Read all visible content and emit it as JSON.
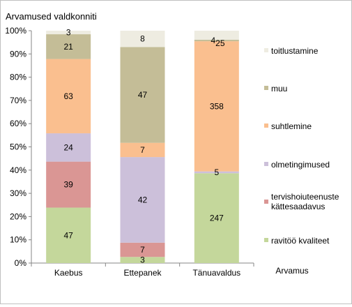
{
  "chart_data": {
    "type": "bar",
    "stacked": true,
    "normalized": true,
    "title": "Arvamused valdkonniti",
    "xlabel": "Arvamus",
    "ylabel": "",
    "ylim": [
      0,
      100
    ],
    "yticks": [
      "0%",
      "10%",
      "20%",
      "30%",
      "40%",
      "50%",
      "60%",
      "70%",
      "80%",
      "90%",
      "100%"
    ],
    "categories": [
      "Kaebus",
      "Ettepanek",
      "Tänuavaldus"
    ],
    "grid": false,
    "legend_position": "right",
    "series": [
      {
        "name": "ravitöö kvaliteet",
        "color": "#c4d79b",
        "values": [
          47,
          3,
          247
        ]
      },
      {
        "name": "tervishoiuteenuste kättesaadavus",
        "color": "#da9694",
        "values": [
          39,
          7,
          0
        ]
      },
      {
        "name": "olmetingimused",
        "color": "#ccc0da",
        "values": [
          24,
          42,
          5
        ]
      },
      {
        "name": "suhtlemine",
        "color": "#fabf8f",
        "values": [
          63,
          7,
          358
        ]
      },
      {
        "name": "muu",
        "color": "#c4bd97",
        "values": [
          21,
          47,
          4
        ]
      },
      {
        "name": "toitlustamine",
        "color": "#eeece1",
        "values": [
          3,
          8,
          25
        ]
      }
    ]
  }
}
